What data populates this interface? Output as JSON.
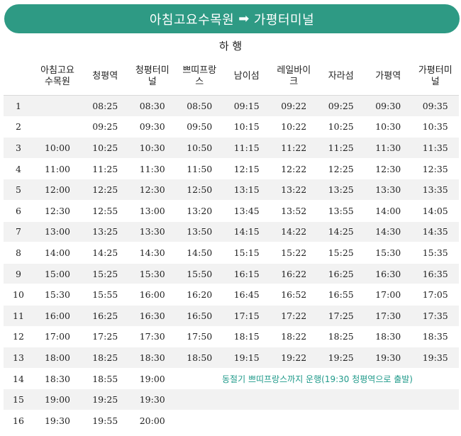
{
  "banner": {
    "from": "아침고요수목원",
    "arrow": "➡",
    "to": "가평터미널"
  },
  "subtitle": "하 행",
  "table": {
    "headers": [
      "",
      "아침고요\n수목원",
      "청평역",
      "청평터미\n널",
      "쁘띠프랑\n스",
      "남이섬",
      "레일바이\n크",
      "자라섬",
      "가평역",
      "가평터미\n널"
    ],
    "rows": [
      [
        "1",
        "",
        "08:25",
        "08:30",
        "08:50",
        "09:15",
        "09:22",
        "09:25",
        "09:30",
        "09:35"
      ],
      [
        "2",
        "",
        "09:25",
        "09:30",
        "09:50",
        "10:15",
        "10:22",
        "10:25",
        "10:30",
        "10:35"
      ],
      [
        "3",
        "10:00",
        "10:25",
        "10:30",
        "10:50",
        "11:15",
        "11:22",
        "11:25",
        "11:30",
        "11:35"
      ],
      [
        "4",
        "11:00",
        "11:25",
        "11:30",
        "11:50",
        "12:15",
        "12:22",
        "12:25",
        "12:30",
        "12:35"
      ],
      [
        "5",
        "12:00",
        "12:25",
        "12:30",
        "12:50",
        "13:15",
        "13:22",
        "13:25",
        "13:30",
        "13:35"
      ],
      [
        "6",
        "12:30",
        "12:55",
        "13:00",
        "13:20",
        "13:45",
        "13:52",
        "13:55",
        "14:00",
        "14:05"
      ],
      [
        "7",
        "13:00",
        "13:25",
        "13:30",
        "13:50",
        "14:15",
        "14:22",
        "14:25",
        "14:30",
        "14:35"
      ],
      [
        "8",
        "14:00",
        "14:25",
        "14:30",
        "14:50",
        "15:15",
        "15:22",
        "15:25",
        "15:30",
        "15:35"
      ],
      [
        "9",
        "15:00",
        "15:25",
        "15:30",
        "15:50",
        "16:15",
        "16:22",
        "16:25",
        "16:30",
        "16:35"
      ],
      [
        "10",
        "15:30",
        "15:55",
        "16:00",
        "16:20",
        "16:45",
        "16:52",
        "16:55",
        "17:00",
        "17:05"
      ],
      [
        "11",
        "16:00",
        "16:25",
        "16:30",
        "16:50",
        "17:15",
        "17:22",
        "17:25",
        "17:30",
        "17:35"
      ],
      [
        "12",
        "17:00",
        "17:25",
        "17:30",
        "17:50",
        "18:15",
        "18:22",
        "18:25",
        "18:30",
        "18:35"
      ],
      [
        "13",
        "18:00",
        "18:25",
        "18:30",
        "18:50",
        "19:15",
        "19:22",
        "19:25",
        "19:30",
        "19:35"
      ],
      [
        "14",
        "18:30",
        "18:55",
        "19:00"
      ],
      [
        "15",
        "19:00",
        "19:25",
        "19:30"
      ],
      [
        "16",
        "19:30",
        "19:55",
        "20:00"
      ]
    ],
    "note_row": "14",
    "note": "동절기 쁘띠프랑스까지 운행(19:30 청평역으로 출발)"
  },
  "colors": {
    "banner": "#2e9a84",
    "note_text": "#1f9a8a",
    "row_shade": "#f2f2f2"
  }
}
